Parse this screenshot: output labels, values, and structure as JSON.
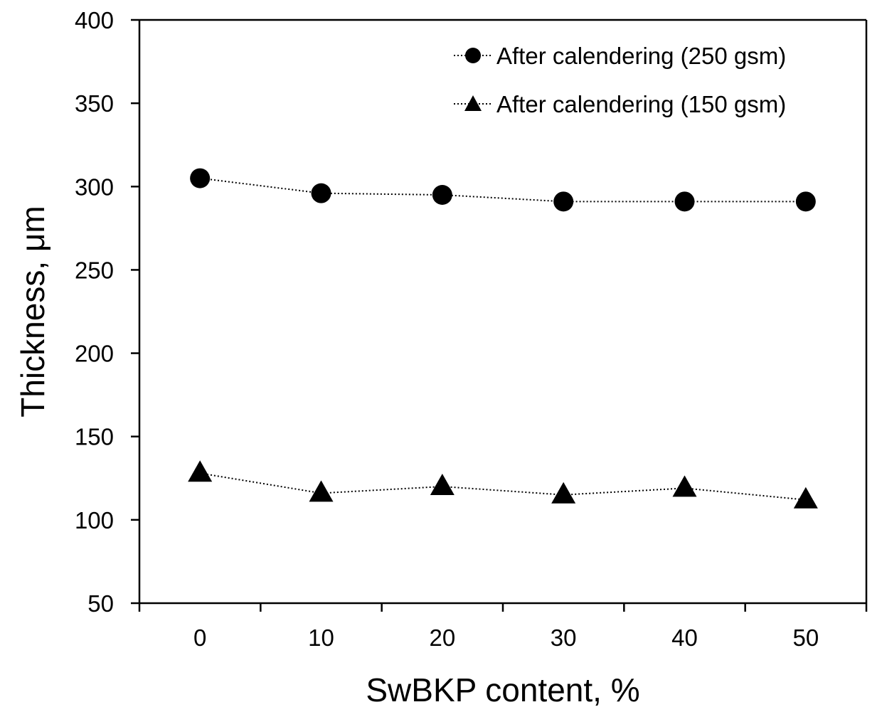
{
  "chart_data": {
    "type": "scatter",
    "title": "",
    "xlabel": "SwBKP content, %",
    "ylabel": "Thickness, μm",
    "categories": [
      "0",
      "10",
      "20",
      "30",
      "40",
      "50"
    ],
    "x": [
      0,
      10,
      20,
      30,
      40,
      50
    ],
    "ylim": [
      50,
      400
    ],
    "yticks": [
      "50",
      "100",
      "150",
      "200",
      "250",
      "300",
      "350",
      "400"
    ],
    "grid": false,
    "legend_position": "top-right",
    "series": [
      {
        "name": "After calendering (250 gsm)",
        "marker": "circle",
        "line": "dotted",
        "color": "#000000",
        "values": [
          305,
          296,
          295,
          291,
          291,
          291
        ]
      },
      {
        "name": "After calendering (150 gsm)",
        "marker": "triangle",
        "line": "dotted",
        "color": "#000000",
        "values": [
          128,
          116,
          120,
          115,
          119,
          112
        ]
      }
    ]
  }
}
